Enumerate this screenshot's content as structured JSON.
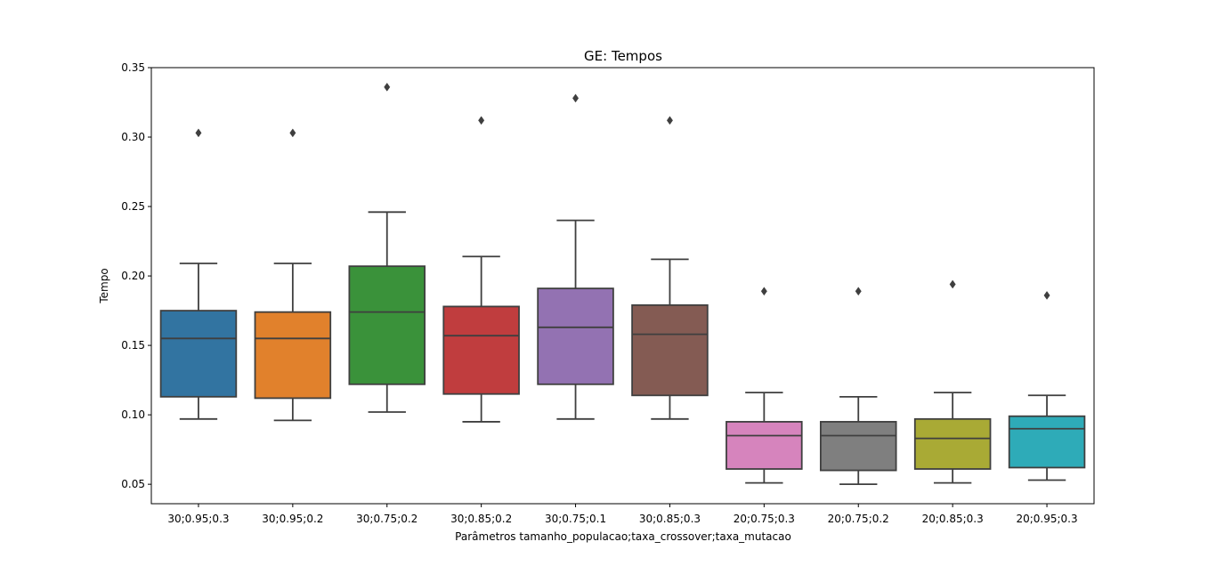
{
  "chart_data": {
    "type": "box",
    "title": "GE: Tempos",
    "xlabel": "Parâmetros tamanho_populacao;taxa_crossover;taxa_mutacao",
    "ylabel": "Tempo",
    "ylim": [
      0.036,
      0.35
    ],
    "yticks": [
      "0.05",
      "0.10",
      "0.15",
      "0.20",
      "0.25",
      "0.30",
      "0.35"
    ],
    "grid": false,
    "categories": [
      "30;0.95;0.3",
      "30;0.95;0.2",
      "30;0.75;0.2",
      "30;0.85;0.2",
      "30;0.75;0.1",
      "30;0.85;0.3",
      "20;0.75;0.3",
      "20;0.75;0.2",
      "20;0.85;0.3",
      "20;0.95;0.3"
    ],
    "boxes": [
      {
        "category": "30;0.95;0.3",
        "color": "#3274a1",
        "whisker_low": 0.097,
        "q1": 0.113,
        "median": 0.155,
        "q3": 0.175,
        "whisker_high": 0.209,
        "outliers": [
          0.303
        ]
      },
      {
        "category": "30;0.95;0.2",
        "color": "#e1812c",
        "whisker_low": 0.096,
        "q1": 0.112,
        "median": 0.155,
        "q3": 0.174,
        "whisker_high": 0.209,
        "outliers": [
          0.303
        ]
      },
      {
        "category": "30;0.75;0.2",
        "color": "#3a923a",
        "whisker_low": 0.102,
        "q1": 0.122,
        "median": 0.174,
        "q3": 0.207,
        "whisker_high": 0.246,
        "outliers": [
          0.336
        ]
      },
      {
        "category": "30;0.85;0.2",
        "color": "#c03d3e",
        "whisker_low": 0.095,
        "q1": 0.115,
        "median": 0.157,
        "q3": 0.178,
        "whisker_high": 0.214,
        "outliers": [
          0.312
        ]
      },
      {
        "category": "30;0.75;0.1",
        "color": "#9372b2",
        "whisker_low": 0.097,
        "q1": 0.122,
        "median": 0.163,
        "q3": 0.191,
        "whisker_high": 0.24,
        "outliers": [
          0.328
        ]
      },
      {
        "category": "30;0.85;0.3",
        "color": "#845b53",
        "whisker_low": 0.097,
        "q1": 0.114,
        "median": 0.158,
        "q3": 0.179,
        "whisker_high": 0.212,
        "outliers": [
          0.312
        ]
      },
      {
        "category": "20;0.75;0.3",
        "color": "#d684bd",
        "whisker_low": 0.051,
        "q1": 0.061,
        "median": 0.085,
        "q3": 0.095,
        "whisker_high": 0.116,
        "outliers": [
          0.189
        ]
      },
      {
        "category": "20;0.75;0.2",
        "color": "#7f7f7f",
        "whisker_low": 0.05,
        "q1": 0.06,
        "median": 0.085,
        "q3": 0.095,
        "whisker_high": 0.113,
        "outliers": [
          0.189
        ]
      },
      {
        "category": "20;0.85;0.3",
        "color": "#a9aa35",
        "whisker_low": 0.051,
        "q1": 0.061,
        "median": 0.083,
        "q3": 0.097,
        "whisker_high": 0.116,
        "outliers": [
          0.194
        ]
      },
      {
        "category": "20;0.95;0.3",
        "color": "#2eabb8",
        "whisker_low": 0.053,
        "q1": 0.062,
        "median": 0.09,
        "q3": 0.099,
        "whisker_high": 0.114,
        "outliers": [
          0.186
        ]
      }
    ],
    "line_color": "#3f3f3f"
  }
}
